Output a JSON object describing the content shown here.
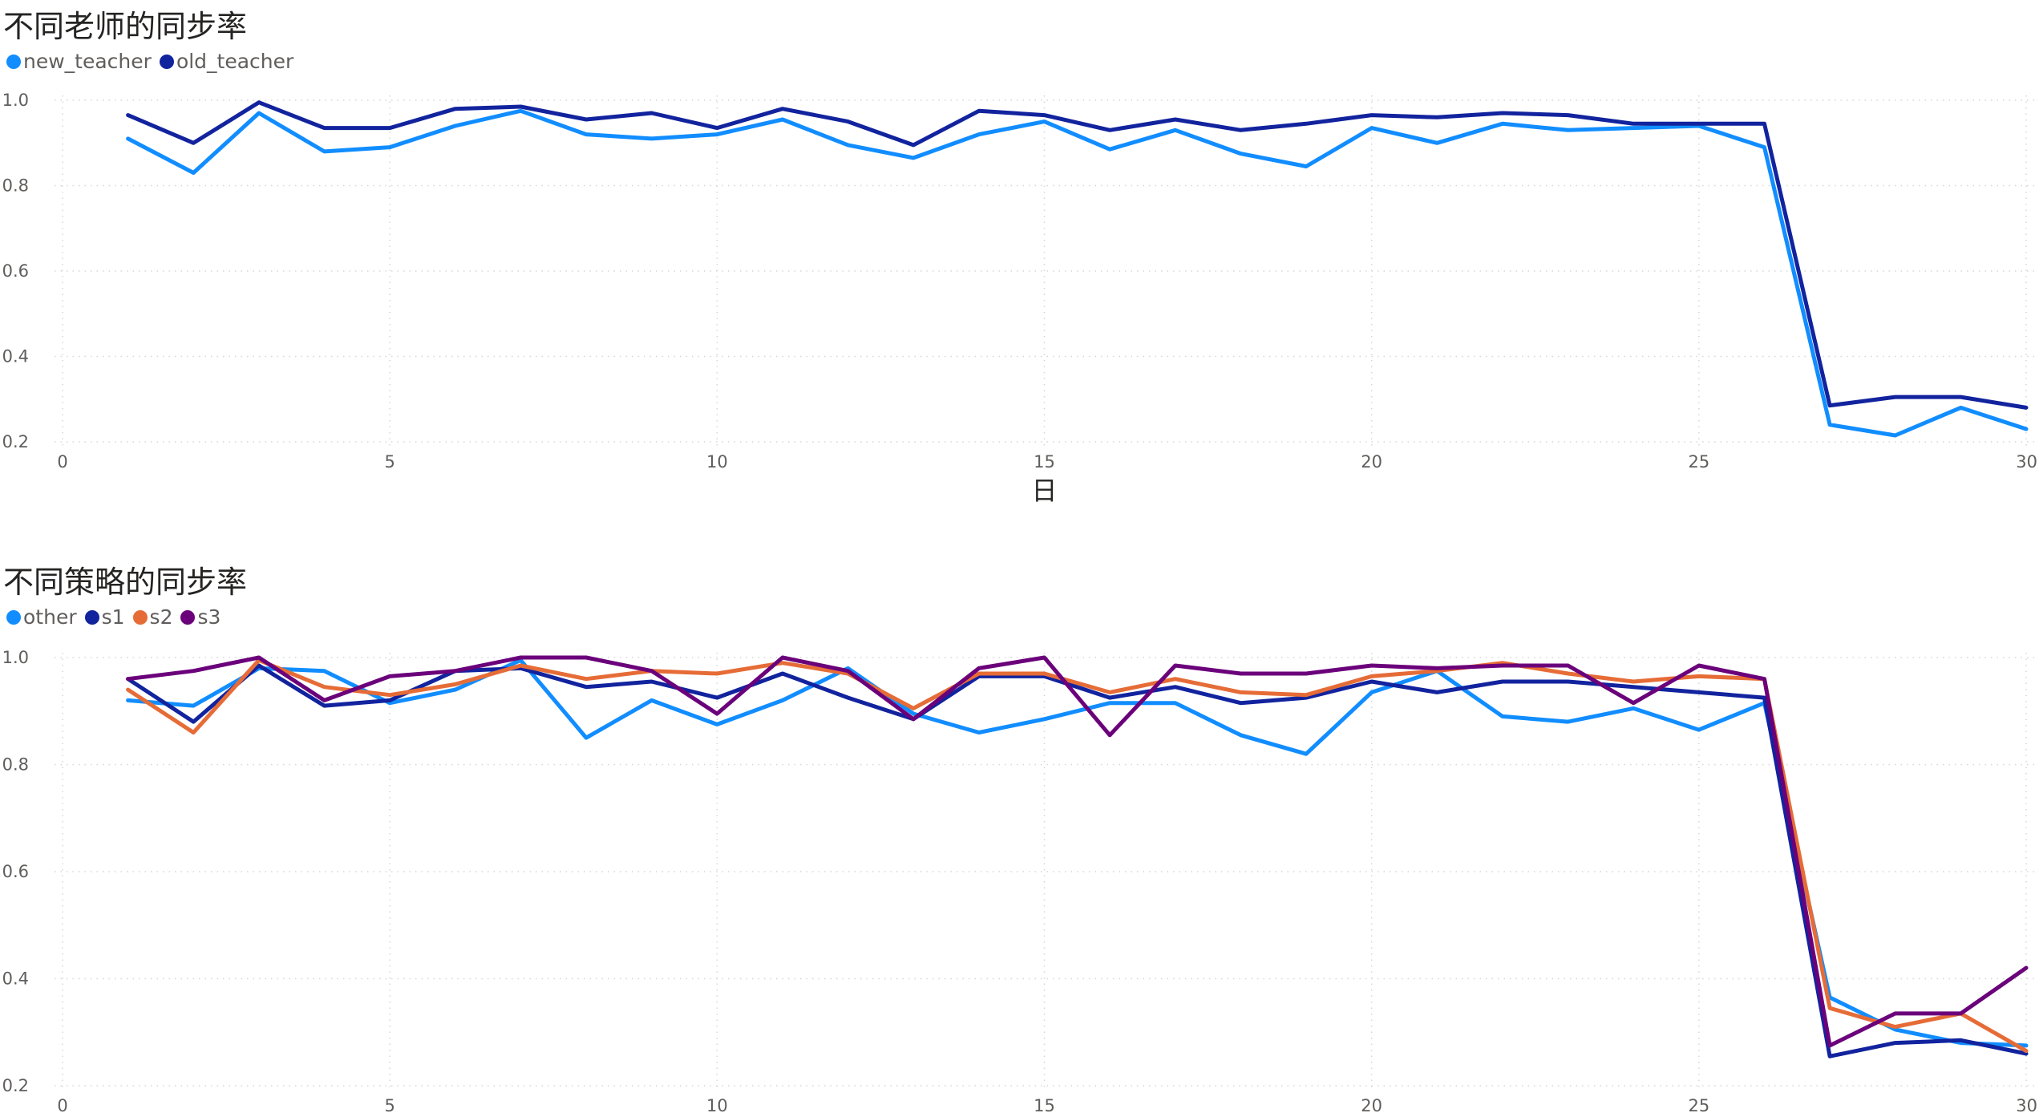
{
  "chart_data": [
    {
      "type": "line",
      "title": "不同老师的同步率",
      "xlabel": "日",
      "ylabel": "",
      "xlim": [
        0,
        30
      ],
      "ylim": [
        0.2,
        1.0
      ],
      "xticks": [
        "0",
        "5",
        "10",
        "15",
        "20",
        "25",
        "30"
      ],
      "yticks": [
        "0.2",
        "0.4",
        "0.6",
        "0.8",
        "1.0"
      ],
      "grid": true,
      "legend_position": "top-left",
      "x": [
        1,
        2,
        3,
        4,
        5,
        6,
        7,
        8,
        9,
        10,
        11,
        12,
        13,
        14,
        15,
        16,
        17,
        18,
        19,
        20,
        21,
        22,
        23,
        24,
        25,
        26,
        27,
        28,
        29,
        30
      ],
      "series": [
        {
          "name": "new_teacher",
          "color": "#118DFF",
          "values": [
            0.91,
            0.83,
            0.97,
            0.88,
            0.89,
            0.94,
            0.975,
            0.92,
            0.91,
            0.92,
            0.955,
            0.895,
            0.865,
            0.92,
            0.95,
            0.885,
            0.93,
            0.875,
            0.845,
            0.935,
            0.9,
            0.945,
            0.93,
            0.935,
            0.94,
            0.89,
            0.24,
            0.215,
            0.28,
            0.23
          ]
        },
        {
          "name": "old_teacher",
          "color": "#12239E",
          "values": [
            0.965,
            0.9,
            0.995,
            0.935,
            0.935,
            0.98,
            0.985,
            0.955,
            0.97,
            0.935,
            0.98,
            0.95,
            0.895,
            0.975,
            0.965,
            0.93,
            0.955,
            0.93,
            0.945,
            0.965,
            0.96,
            0.97,
            0.965,
            0.945,
            0.945,
            0.945,
            0.285,
            0.305,
            0.305,
            0.28
          ]
        }
      ]
    },
    {
      "type": "line",
      "title": "不同策略的同步率",
      "xlabel": "",
      "ylabel": "",
      "xlim": [
        0,
        30
      ],
      "ylim": [
        0.2,
        1.0
      ],
      "xticks": [
        "0",
        "5",
        "10",
        "15",
        "20",
        "25",
        "30"
      ],
      "yticks": [
        "0.2",
        "0.4",
        "0.6",
        "0.8",
        "1.0"
      ],
      "grid": true,
      "legend_position": "top-left",
      "x": [
        1,
        2,
        3,
        4,
        5,
        6,
        7,
        8,
        9,
        10,
        11,
        12,
        13,
        14,
        15,
        16,
        17,
        18,
        19,
        20,
        21,
        22,
        23,
        24,
        25,
        26,
        27,
        28,
        29,
        30
      ],
      "series": [
        {
          "name": "other",
          "color": "#118DFF",
          "values": [
            0.92,
            0.91,
            0.98,
            0.975,
            0.915,
            0.94,
            0.995,
            0.85,
            0.92,
            0.875,
            0.92,
            0.98,
            0.895,
            0.86,
            0.885,
            0.915,
            0.915,
            0.855,
            0.82,
            0.935,
            0.975,
            0.89,
            0.88,
            0.905,
            0.865,
            0.915,
            0.365,
            0.305,
            0.28,
            0.275
          ]
        },
        {
          "name": "s1",
          "color": "#12239E",
          "values": [
            0.96,
            0.88,
            0.985,
            0.91,
            0.92,
            0.975,
            0.98,
            0.945,
            0.955,
            0.925,
            0.97,
            0.925,
            0.885,
            0.965,
            0.965,
            0.925,
            0.945,
            0.915,
            0.925,
            0.955,
            0.935,
            0.955,
            0.955,
            0.945,
            0.935,
            0.925,
            0.255,
            0.28,
            0.285,
            0.26
          ]
        },
        {
          "name": "s2",
          "color": "#E66C37",
          "values": [
            0.94,
            0.86,
            0.995,
            0.945,
            0.93,
            0.95,
            0.985,
            0.96,
            0.975,
            0.97,
            0.99,
            0.97,
            0.905,
            0.97,
            0.97,
            0.935,
            0.96,
            0.935,
            0.93,
            0.965,
            0.975,
            0.99,
            0.97,
            0.955,
            0.965,
            0.96,
            0.345,
            0.31,
            0.335,
            0.265
          ]
        },
        {
          "name": "s3",
          "color": "#6B007B",
          "values": [
            0.96,
            0.975,
            1.0,
            0.92,
            0.965,
            0.975,
            1.0,
            1.0,
            0.975,
            0.895,
            1.0,
            0.975,
            0.885,
            0.98,
            1.0,
            0.855,
            0.985,
            0.97,
            0.97,
            0.985,
            0.98,
            0.985,
            0.985,
            0.915,
            0.985,
            0.96,
            0.275,
            0.335,
            0.335,
            0.42
          ]
        }
      ]
    }
  ]
}
